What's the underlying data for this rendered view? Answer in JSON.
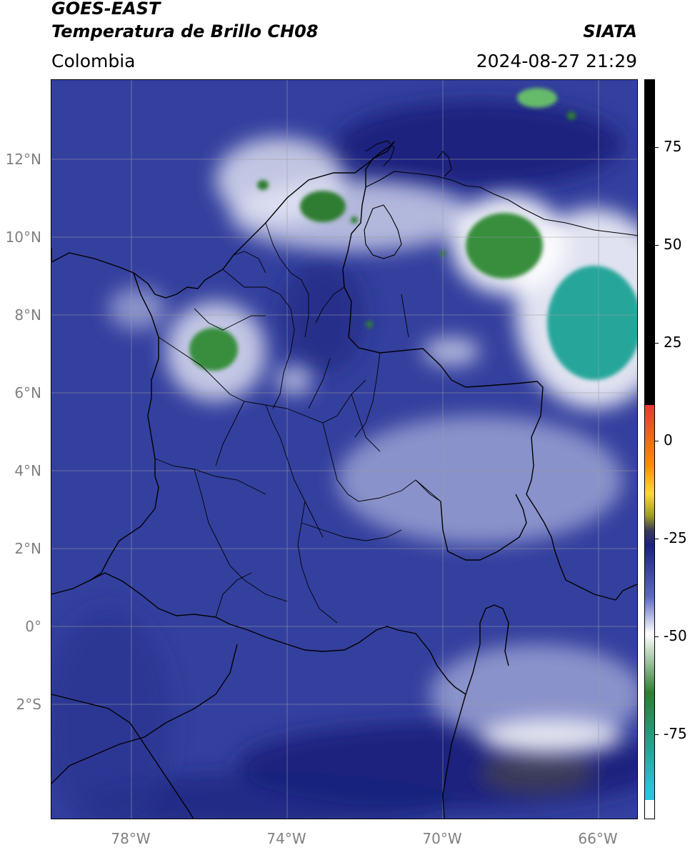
{
  "header": {
    "title_line1": "GOES-EAST",
    "title_line2": "Temperatura de Brillo CH08",
    "subtitle": "Colombia",
    "agency": "SIATA",
    "timestamp": "2024-08-27 21:29"
  },
  "map": {
    "lat_labels": [
      "12°N",
      "10°N",
      "8°N",
      "6°N",
      "4°N",
      "2°N",
      "0°",
      "2°S"
    ],
    "lon_labels": [
      "78°W",
      "74°W",
      "70°W",
      "66°W"
    ],
    "colors": {
      "background": "#34409e",
      "deep_blue": "#1a237e",
      "light": "#e8eaf6",
      "green": "#2e7d32",
      "teal": "#26a69a",
      "border": "#000000",
      "grid": "#9e9e9e"
    }
  },
  "colorbar": {
    "tick_labels": [
      "75",
      "50",
      "25",
      "0",
      "-25",
      "-50",
      "-75"
    ],
    "colors": {
      "black": "#000000",
      "red": "#e53935",
      "orange": "#fb8c00",
      "yellow": "#fdd835",
      "olive": "#9e9d24",
      "navy": "#1a237e",
      "white": "#ffffff",
      "green": "#2e7d32",
      "cyan": "#26c6da"
    }
  }
}
